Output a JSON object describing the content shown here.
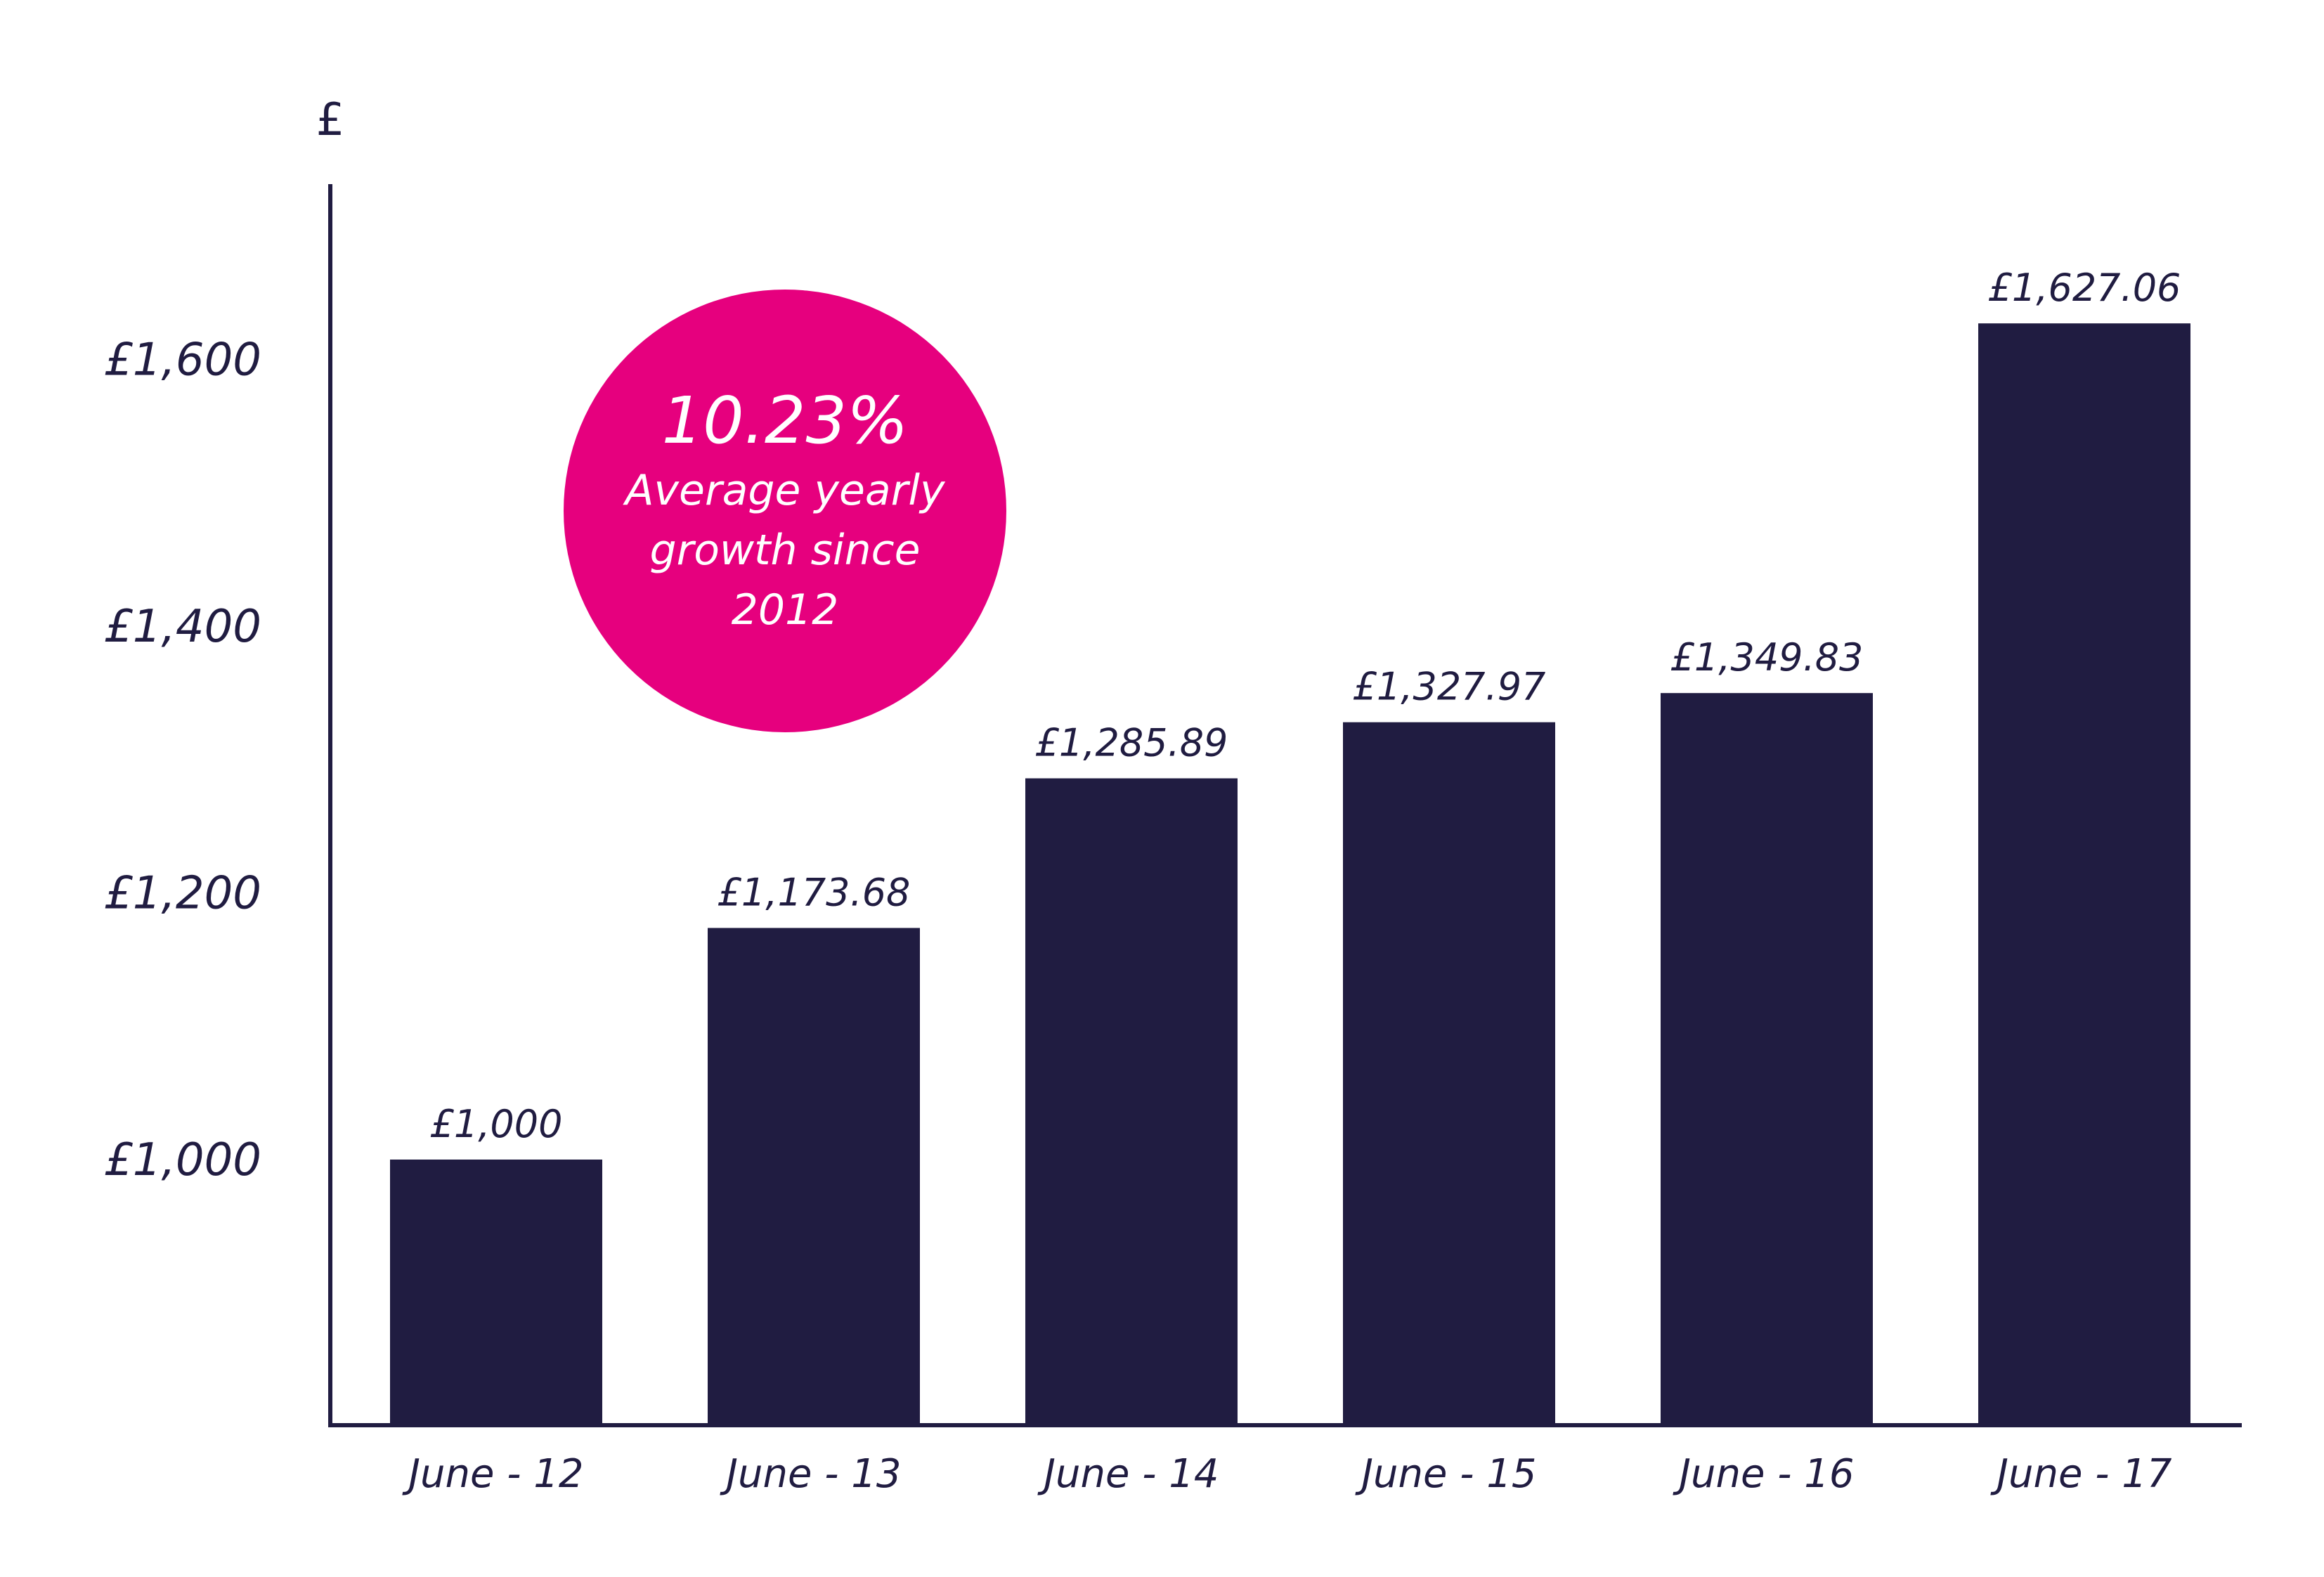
{
  "colors": {
    "bar": "#201c41",
    "axis": "#201c41",
    "badge": "#e6007e",
    "badge_text": "#ffffff",
    "background": "#ffffff"
  },
  "callout": {
    "value": "10.23%",
    "caption_lines": [
      "Average yearly",
      "growth since",
      "2012"
    ]
  },
  "chart_data": {
    "type": "bar",
    "title": "",
    "xlabel": "",
    "ylabel": "£",
    "categories": [
      "June - 12",
      "June - 13",
      "June - 14",
      "June - 15",
      "June - 16",
      "June - 17"
    ],
    "values": [
      1000,
      1173.68,
      1285.89,
      1327.97,
      1349.83,
      1627.06
    ],
    "value_labels": [
      "£1,000",
      "£1,173.68",
      "£1,285.89",
      "£1,327.97",
      "£1,349.83",
      "£1,627.06"
    ],
    "yticks": [
      1000,
      1200,
      1400,
      1600
    ],
    "ytick_labels": [
      "£1,000",
      "£1,200",
      "£1,400",
      "£1,600"
    ],
    "ylim": [
      800,
      1730
    ],
    "grid": false,
    "legend": "none"
  }
}
